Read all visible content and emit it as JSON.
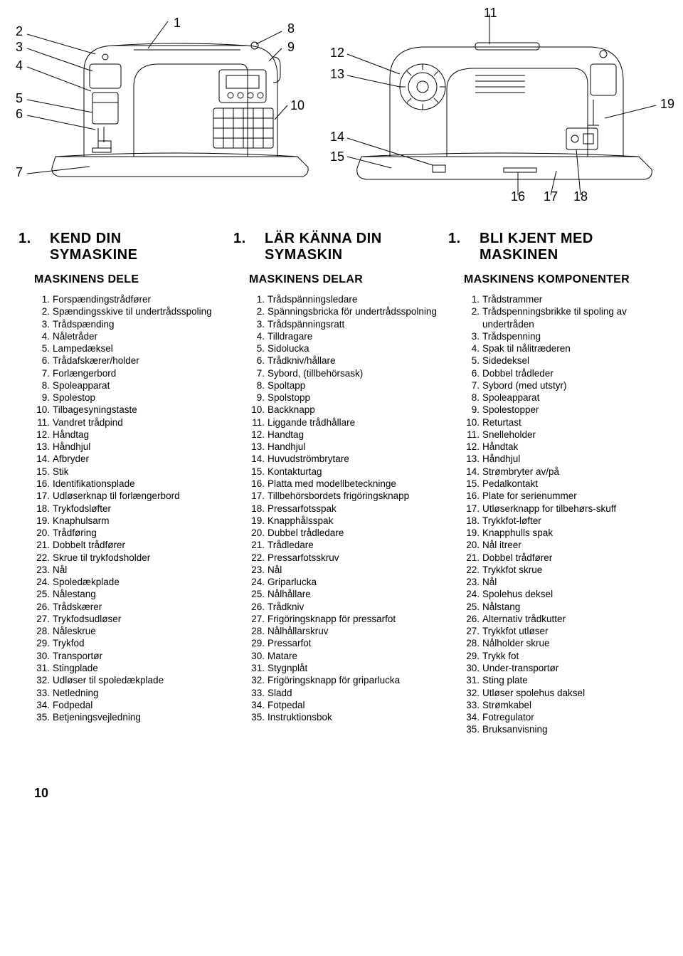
{
  "page_number": "10",
  "diagram": {
    "left_callouts_left": [
      "2",
      "3",
      "4",
      "5",
      "6",
      "7"
    ],
    "left_callouts_top": [
      "1"
    ],
    "left_callouts_right": [
      "8",
      "9",
      "10"
    ],
    "right_callouts_top": [
      "11"
    ],
    "right_callouts_left": [
      "12",
      "13",
      "14",
      "15"
    ],
    "right_callouts_right": [
      "19"
    ],
    "right_callouts_bottom": [
      "16",
      "17",
      "18"
    ],
    "stroke": "#000000",
    "stroke_width": 1
  },
  "columns": [
    {
      "title_num": "1.",
      "title": "KEND DIN\nSYMASKINE",
      "subheading": "MASKINENS DELE",
      "items": [
        "Forspændingstrådfører",
        "Spændingsskive til undertrådsspoling",
        "Trådspænding",
        "Nåletråder",
        "Lampedæksel",
        "Trådafskærer/holder",
        "Forlængerbord",
        "Spoleapparat",
        "Spolestop",
        "Tilbagesyningstaste",
        "Vandret trådpind",
        "Håndtag",
        "Håndhjul",
        "Afbryder",
        "Stik",
        "Identifikationsplade",
        "Udløserknap til forlængerbord",
        "Trykfodsløfter",
        "Knaphulsarm",
        "Trådføring",
        "Dobbelt trådfører",
        "Skrue til trykfodsholder",
        "Nål",
        "Spoledækplade",
        "Nålestang",
        "Trådskærer",
        "Trykfodsudløser",
        "Nåleskrue",
        "Trykfod",
        "Transportør",
        "Stingplade",
        "Udløser til spoledækplade",
        "Netledning",
        "Fodpedal",
        "Betjeningsvejledning"
      ]
    },
    {
      "title_num": "1.",
      "title": "LÄR KÄNNA DIN\nSYMASKIN",
      "subheading": "MASKINENS DELAR",
      "items": [
        "Trådspänningsledare",
        "Spänningsbricka för undertrådsspolning",
        "Trådspänningsratt",
        "Tilldragare",
        "Sidolucka",
        "Trådkniv/hållare",
        "Sybord, (tillbehörsask)",
        "Spoltapp",
        "Spolstopp",
        "Backknapp",
        "Liggande trådhållare",
        "Handtag",
        "Handhjul",
        "Huvudströmbrytare",
        "Kontakturtag",
        "Platta med modellbeteckninge",
        "Tillbehörsbordets frigöringsknapp",
        "Pressarfotsspak",
        "Knapphålsspak",
        "Dubbel trådledare",
        "Trådledare",
        "Pressarfotsskruv",
        "Nål",
        "Griparlucka",
        "Nålhållare",
        "Trådkniv",
        "Frigöringsknapp för pressarfot",
        "Nålhållarskruv",
        "Pressarfot",
        "Matare",
        "Stygnplåt",
        "Frigöringsknapp för griparlucka",
        "Sladd",
        "Fotpedal",
        "Instruktionsbok"
      ]
    },
    {
      "title_num": "1.",
      "title": "BLI KJENT MED\nMASKINEN",
      "subheading": "MASKINENS KOMPONENTER",
      "items": [
        "Trådstrammer",
        "Trådspenningsbrikke til spoling av undertråden",
        "Trådspenning",
        "Spak til nålitræderen",
        "Sidedeksel",
        "Dobbel trådleder",
        "Sybord (med utstyr)",
        "Spoleapparat",
        "Spolestopper",
        "Returtast",
        "Snelleholder",
        "Håndtak",
        "Håndhjul",
        "Strømbryter av/på",
        "Pedalkontakt",
        "Plate for serienummer",
        "Utløserknapp for tilbehørs-skuff",
        "Trykkfot-løfter",
        "Knapphulls spak",
        "Nål itreer",
        "Dobbel trådfører",
        "Trykkfot skrue",
        "Nål",
        "Spolehus deksel",
        "Nålstang",
        "Alternativ trådkutter",
        "Trykkfot utløser",
        "Nålholder skrue",
        "Trykk fot",
        "Under-transportør",
        "Sting plate",
        "Utløser spolehus daksel",
        "Strømkabel",
        "Fotregulator",
        "Bruksanvisning"
      ]
    }
  ]
}
